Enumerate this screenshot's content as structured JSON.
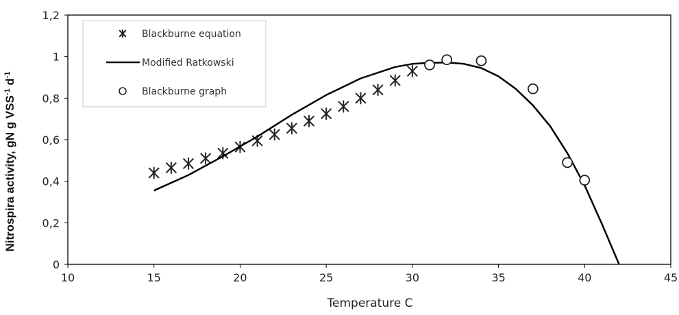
{
  "chart_data": {
    "type": "scatter",
    "xlabel": "Temperature C",
    "ylabel": {
      "prefix": "Nitrospira activity, gN g VSS",
      "sup1": "-1",
      "middle": " d",
      "sup2": "-1"
    },
    "xlim": [
      10,
      45
    ],
    "ylim": [
      0,
      1.2
    ],
    "x_ticks": [
      "10",
      "15",
      "20",
      "25",
      "30",
      "35",
      "40",
      "45"
    ],
    "y_ticks": [
      "0",
      "0,2",
      "0,4",
      "0,6",
      "0,8",
      "1",
      "1,2"
    ],
    "legend_position": "top-left",
    "grid": false,
    "series": [
      {
        "name": "Blackburne equation",
        "kind": "markers",
        "marker": "asterisk",
        "x": [
          15,
          16,
          17,
          18,
          19,
          20,
          21,
          22,
          23,
          24,
          25,
          26,
          27,
          28,
          29,
          30
        ],
        "y": [
          0.44,
          0.465,
          0.485,
          0.51,
          0.535,
          0.565,
          0.595,
          0.625,
          0.655,
          0.69,
          0.725,
          0.76,
          0.8,
          0.84,
          0.885,
          0.93
        ]
      },
      {
        "name": "Modified Ratkowski",
        "kind": "line",
        "x": [
          15,
          17,
          19,
          21,
          23,
          25,
          27,
          29,
          30,
          31,
          32,
          33,
          34,
          35,
          36,
          37,
          38,
          39,
          40,
          41,
          42
        ],
        "y": [
          0.355,
          0.43,
          0.52,
          0.615,
          0.72,
          0.815,
          0.895,
          0.95,
          0.965,
          0.97,
          0.972,
          0.965,
          0.945,
          0.905,
          0.845,
          0.765,
          0.665,
          0.535,
          0.38,
          0.195,
          0.0
        ]
      },
      {
        "name": "Blackburne graph",
        "kind": "markers",
        "marker": "circle",
        "x": [
          31,
          32,
          34,
          37,
          39,
          40
        ],
        "y": [
          0.96,
          0.985,
          0.98,
          0.845,
          0.49,
          0.405
        ]
      }
    ]
  }
}
